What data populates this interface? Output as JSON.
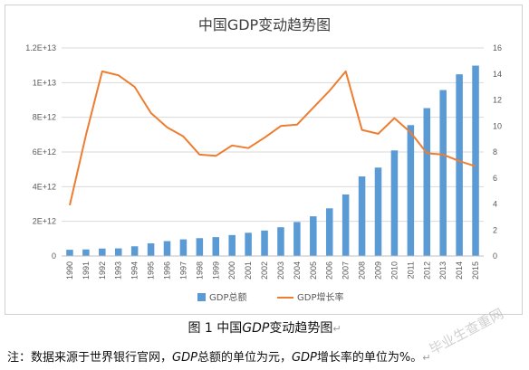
{
  "chart_data": {
    "type": "bar+line",
    "title": "中国GDP变动趋势图",
    "categories": [
      "1990",
      "1991",
      "1992",
      "1993",
      "1994",
      "1995",
      "1996",
      "1997",
      "1998",
      "1999",
      "2000",
      "2001",
      "2002",
      "2003",
      "2004",
      "2005",
      "2006",
      "2007",
      "2008",
      "2009",
      "2010",
      "2011",
      "2012",
      "2013",
      "2014",
      "2015"
    ],
    "series": [
      {
        "name": "GDP总额",
        "kind": "bar",
        "axis": "left",
        "values": [
          360000000000.0,
          380000000000.0,
          430000000000.0,
          440000000000.0,
          560000000000.0,
          730000000000.0,
          860000000000.0,
          960000000000.0,
          1030000000000.0,
          1090000000000.0,
          1210000000000.0,
          1340000000000.0,
          1470000000000.0,
          1660000000000.0,
          1960000000000.0,
          2290000000000.0,
          2750000000000.0,
          3550000000000.0,
          4590000000000.0,
          5100000000000.0,
          6090000000000.0,
          7550000000000.0,
          8530000000000.0,
          9570000000000.0,
          10480000000000.0,
          10980000000000.0
        ]
      },
      {
        "name": "GDP增长率",
        "kind": "line",
        "axis": "right",
        "values": [
          3.9,
          9.3,
          14.2,
          13.9,
          13.0,
          11.0,
          9.9,
          9.2,
          7.8,
          7.7,
          8.5,
          8.3,
          9.1,
          10.0,
          10.1,
          11.4,
          12.7,
          14.2,
          9.7,
          9.4,
          10.6,
          9.5,
          7.9,
          7.8,
          7.3,
          6.9
        ]
      }
    ],
    "y_left": {
      "min": 0,
      "max": 12000000000000.0,
      "ticks": [
        "0",
        "2E+12",
        "4E+12",
        "6E+12",
        "8E+12",
        "1E+13",
        "1.2E+13"
      ]
    },
    "y_right": {
      "min": 0,
      "max": 16,
      "ticks": [
        "0",
        "2",
        "4",
        "6",
        "8",
        "10",
        "12",
        "14",
        "16"
      ]
    },
    "legend_position": "bottom",
    "grid": true,
    "colors": {
      "bar": "#5b9bd5",
      "line": "#ed7d31",
      "grid": "#d9d9d9",
      "axis_text": "#595959"
    }
  },
  "caption": {
    "prefix": "图 1 中国",
    "italic": "GDP",
    "suffix": "变动趋势图"
  },
  "note": {
    "p1": "注：数据来源于世界银行官网，",
    "i1": "GDP",
    "p2": "总额的单位为元，",
    "i2": "GDP",
    "p3": "增长率的单位为%。"
  },
  "return_mark": "↵",
  "watermark": "毕业生查重网"
}
